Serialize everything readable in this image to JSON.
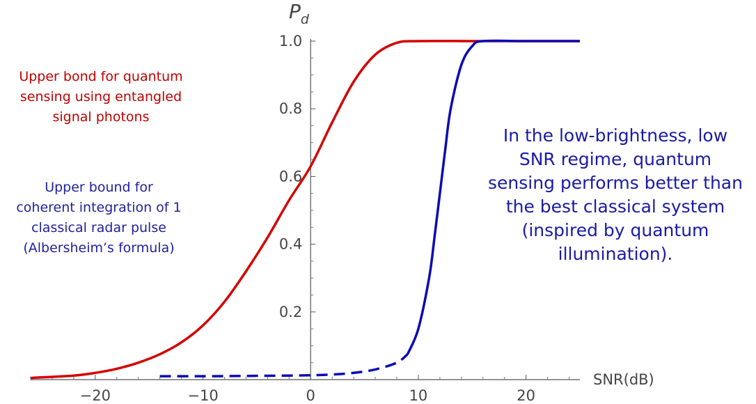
{
  "chart_data": {
    "type": "line",
    "xlabel": "SNR(dB)",
    "ylabel": "P",
    "ylabel_subscript": "d",
    "xlim": [
      -26,
      25
    ],
    "ylim": [
      0,
      1.0
    ],
    "xticks": [
      -20,
      -10,
      0,
      10,
      20
    ],
    "xtick_labels": [
      "−20",
      "−10",
      "0",
      "10",
      "20"
    ],
    "yticks": [
      0.2,
      0.4,
      0.6,
      0.8,
      1.0
    ],
    "ytick_labels": [
      "0.2",
      "0.4",
      "0.6",
      "0.8",
      "1.0"
    ],
    "grid": false,
    "series": [
      {
        "name": "",
        "color": "#d40000",
        "style": "solid",
        "x": [
          -26,
          -22,
          -20,
          -18,
          -16,
          -14,
          -12,
          -10,
          -8,
          -6,
          -4,
          -2,
          0,
          2,
          4,
          6,
          8,
          10,
          15,
          20,
          25
        ],
        "y": [
          0.005,
          0.012,
          0.02,
          0.032,
          0.05,
          0.075,
          0.11,
          0.16,
          0.23,
          0.32,
          0.42,
          0.53,
          0.63,
          0.76,
          0.88,
          0.96,
          0.995,
          1.0,
          1.0,
          1.0,
          1.0
        ]
      },
      {
        "name": "",
        "color": "#0b0bb5",
        "style": "dashed",
        "x": [
          -14,
          -10,
          -6,
          -2,
          0,
          2,
          4,
          6,
          8,
          9
        ],
        "y": [
          0.01,
          0.01,
          0.011,
          0.012,
          0.013,
          0.015,
          0.02,
          0.03,
          0.05,
          0.075
        ]
      },
      {
        "name": "",
        "color": "#0b0bb5",
        "style": "solid",
        "x": [
          9,
          10,
          11,
          11.5,
          12,
          12.5,
          13,
          14,
          15,
          16,
          20,
          25
        ],
        "y": [
          0.075,
          0.15,
          0.3,
          0.42,
          0.55,
          0.68,
          0.8,
          0.93,
          0.985,
          1.0,
          1.0,
          1.0
        ]
      }
    ],
    "annotations": {
      "red_lines": [
        "Upper bond for quantum",
        "sensing using entangled",
        "signal photons"
      ],
      "blue_left_lines": [
        "Upper bound for",
        "coherent integration of 1",
        "classical radar pulse",
        "(Albersheim’s formula)"
      ],
      "blue_right_lines": [
        "In the low-brightness, low",
        "SNR regime, quantum",
        "sensing performs better than",
        "the best classical system",
        "(inspired by quantum",
        "illumination)."
      ]
    }
  }
}
